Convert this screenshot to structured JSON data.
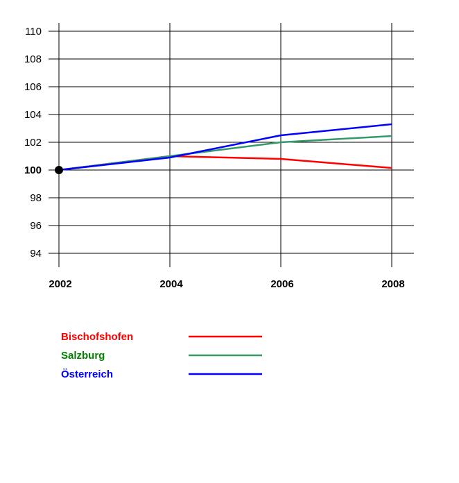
{
  "chart_data": {
    "type": "line",
    "title": "",
    "xlabel": "",
    "ylabel": "",
    "x": [
      2002,
      2004,
      2006,
      2008
    ],
    "x_tick_labels": [
      "2002",
      "2004",
      "2006",
      "2008"
    ],
    "y_ticks": [
      94,
      96,
      98,
      100,
      102,
      104,
      106,
      108,
      110
    ],
    "y_tick_labels": [
      "94",
      "96",
      "98",
      "100",
      "102",
      "104",
      "106",
      "108",
      "110"
    ],
    "ylim": [
      93.5,
      110.5
    ],
    "grid": true,
    "legend_position": "bottom-left",
    "base_point": {
      "x": 2002,
      "y": 100
    },
    "series": [
      {
        "name": "Bischofshofen",
        "color": "#ff0000",
        "values": [
          100,
          101.0,
          100.8,
          100.15
        ]
      },
      {
        "name": "Salzburg",
        "color": "#339966",
        "values": [
          100,
          101.0,
          102.0,
          102.45
        ]
      },
      {
        "name": "Österreich",
        "color": "#0000ff",
        "values": [
          100,
          100.9,
          102.5,
          103.3
        ]
      }
    ],
    "legend_label_colors": [
      "#ff0000",
      "#008000",
      "#0000ff"
    ]
  }
}
